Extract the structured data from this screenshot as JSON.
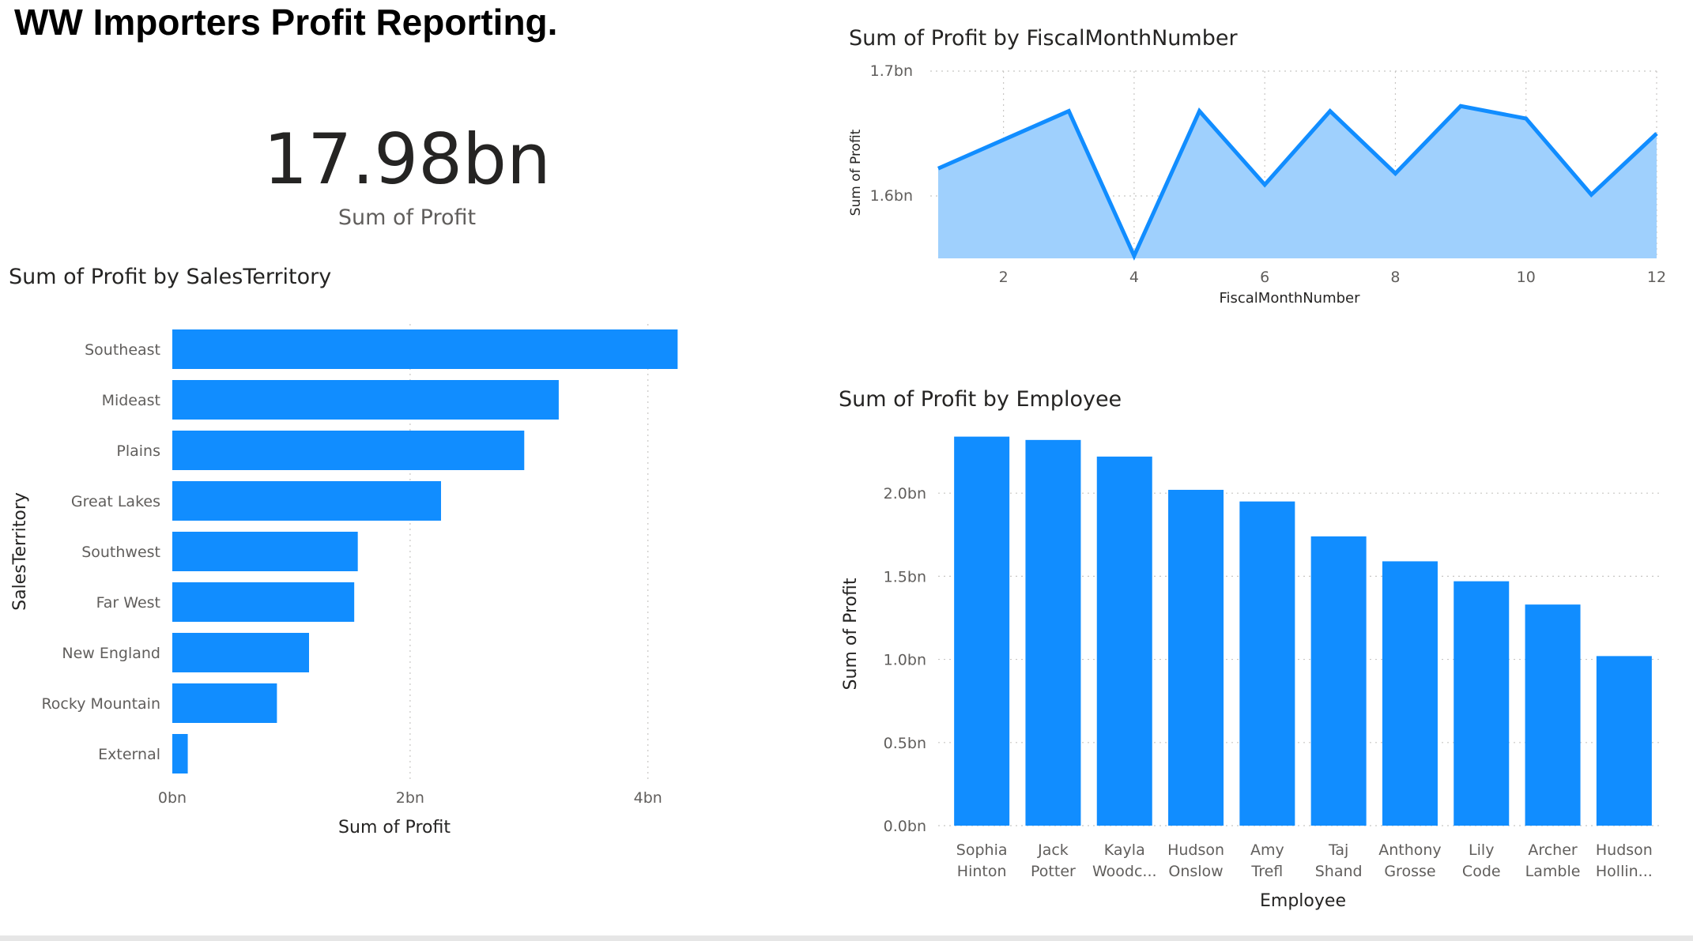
{
  "report": {
    "title": "WW Importers Profit Reporting."
  },
  "card": {
    "value": "17.98bn",
    "label": "Sum of Profit"
  },
  "colors": {
    "bar": "#118dff",
    "area_fill": "#9fd0fd",
    "line": "#118dff"
  },
  "chart_data": [
    {
      "id": "territory",
      "type": "bar",
      "orientation": "horizontal",
      "title": "Sum of Profit by SalesTerritory",
      "xlabel": "Sum of Profit",
      "ylabel": "SalesTerritory",
      "categories": [
        "Southeast",
        "Mideast",
        "Plains",
        "Great Lakes",
        "Southwest",
        "Far West",
        "New England",
        "Rocky Mountain",
        "External"
      ],
      "values": [
        4.25,
        3.25,
        2.96,
        2.26,
        1.56,
        1.53,
        1.15,
        0.88,
        0.13
      ],
      "unit": "bn",
      "xlim": [
        0,
        4.6
      ],
      "ticks": [
        0,
        2,
        4
      ],
      "tick_labels": [
        "0bn",
        "2bn",
        "4bn"
      ],
      "grid": true,
      "legend": "none"
    },
    {
      "id": "month",
      "type": "area",
      "title": "Sum of Profit by FiscalMonthNumber",
      "xlabel": "FiscalMonthNumber",
      "ylabel": "Sum of Profit",
      "x": [
        1,
        2,
        3,
        4,
        5,
        6,
        7,
        8,
        9,
        10,
        11,
        12
      ],
      "values": [
        1.622,
        1.645,
        1.668,
        1.552,
        1.668,
        1.609,
        1.668,
        1.618,
        1.672,
        1.662,
        1.601,
        1.65
      ],
      "unit": "bn",
      "xlim": [
        1,
        12
      ],
      "ylim": [
        1.55,
        1.7
      ],
      "xticks": [
        2,
        4,
        6,
        8,
        10,
        12
      ],
      "xtick_labels": [
        "2",
        "4",
        "6",
        "8",
        "10",
        "12"
      ],
      "yticks": [
        1.6,
        1.7
      ],
      "ytick_labels": [
        "1.6bn",
        "1.7bn"
      ],
      "grid": true,
      "legend": "none"
    },
    {
      "id": "employee",
      "type": "bar",
      "orientation": "vertical",
      "title": "Sum of Profit by Employee",
      "xlabel": "Employee",
      "ylabel": "Sum of Profit",
      "categories": [
        [
          "Sophia",
          "Hinton"
        ],
        [
          "Jack",
          "Potter"
        ],
        [
          "Kayla",
          "Woodc..."
        ],
        [
          "Hudson",
          "Onslow"
        ],
        [
          "Amy",
          "Trefl"
        ],
        [
          "Taj",
          "Shand"
        ],
        [
          "Anthony",
          "Grosse"
        ],
        [
          "Lily",
          "Code"
        ],
        [
          "Archer",
          "Lamble"
        ],
        [
          "Hudson",
          "Hollin..."
        ]
      ],
      "values": [
        2.34,
        2.32,
        2.22,
        2.02,
        1.95,
        1.74,
        1.59,
        1.47,
        1.33,
        1.02
      ],
      "unit": "bn",
      "ylim": [
        0,
        2.4
      ],
      "yticks": [
        0,
        0.5,
        1,
        1.5,
        2
      ],
      "ytick_labels": [
        "0.0bn",
        "0.5bn",
        "1.0bn",
        "1.5bn",
        "2.0bn"
      ],
      "grid": true,
      "legend": "none"
    }
  ]
}
